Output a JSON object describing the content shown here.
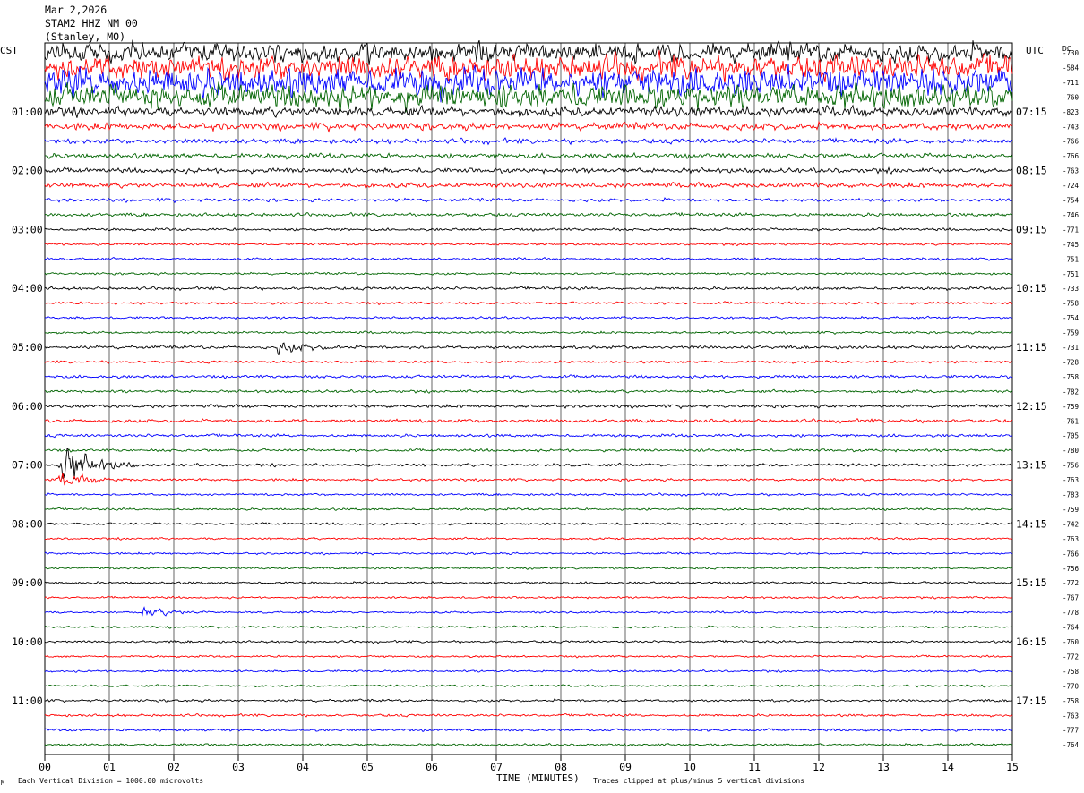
{
  "header": {
    "date": "Mar 2,2026",
    "station": "STAM2 HHZ NM 00",
    "location": "(Stanley, MO)"
  },
  "left_tz": "CST",
  "right_tz": "UTC",
  "dc_label": "DC",
  "footer": {
    "scale": "Each Vertical Division = 1000.00 microvolts",
    "clip": "Traces clipped at plus/minus 5 vertical divisions",
    "corner": "M"
  },
  "colors": {
    "c0": "#000000",
    "c1": "#ff0000",
    "c2": "#0000ff",
    "c3": "#006400"
  },
  "chart_data": {
    "type": "line",
    "title": "",
    "xlabel": "TIME (MINUTES)",
    "ylabel": "",
    "xlim": [
      0,
      15
    ],
    "x_ticks": [
      "00",
      "01",
      "02",
      "03",
      "04",
      "05",
      "06",
      "07",
      "08",
      "09",
      "10",
      "11",
      "12",
      "13",
      "14",
      "15"
    ],
    "grid": true,
    "traces_per_hour": 4,
    "left_hour_labels": [
      "01:00",
      "02:00",
      "03:00",
      "04:00",
      "05:00",
      "06:00",
      "07:00",
      "08:00",
      "09:00",
      "10:00",
      "11:00"
    ],
    "right_hour_labels": [
      "07:15",
      "08:15",
      "09:15",
      "10:15",
      "11:15",
      "12:15",
      "13:15",
      "14:15",
      "15:15",
      "16:15",
      "17:15"
    ],
    "dc_offsets": [
      "-730",
      "-584",
      "-711",
      "-760",
      "-823",
      "-743",
      "-766",
      "-766",
      "-763",
      "-724",
      "-754",
      "-746",
      "-771",
      "-745",
      "-751",
      "-751",
      "-733",
      "-758",
      "-754",
      "-759",
      "-731",
      "-728",
      "-758",
      "-782",
      "-759",
      "-761",
      "-705",
      "-780",
      "-756",
      "-763",
      "-783",
      "-759",
      "-742",
      "-763",
      "-766",
      "-756",
      "-772",
      "-767",
      "-778",
      "-764",
      "-760",
      "-772",
      "-758",
      "-770",
      "-758",
      "-763",
      "-777",
      "-764"
    ],
    "trace_activity": [
      8,
      10,
      12,
      10,
      4,
      3,
      2,
      2,
      2,
      2,
      1.4,
      1.4,
      1.1,
      0.9,
      0.9,
      0.9,
      1.2,
      1,
      0.9,
      0.9,
      1.3,
      1,
      1.2,
      1.1,
      1.3,
      1.4,
      1.2,
      1.1,
      1.2,
      1,
      0.9,
      0.9,
      0.9,
      0.8,
      0.8,
      0.8,
      0.9,
      0.8,
      0.8,
      0.8,
      0.9,
      0.8,
      0.8,
      0.8,
      1,
      1,
      1,
      0.9
    ],
    "events": [
      {
        "trace": 28,
        "minute": 0.2,
        "amplitude": 10,
        "note": "large arrival"
      },
      {
        "trace": 29,
        "minute": 0.2,
        "amplitude": 3
      },
      {
        "trace": 20,
        "minute": 3.6,
        "amplitude": 2.5
      },
      {
        "trace": 38,
        "minute": 1.5,
        "amplitude": 2
      }
    ]
  }
}
